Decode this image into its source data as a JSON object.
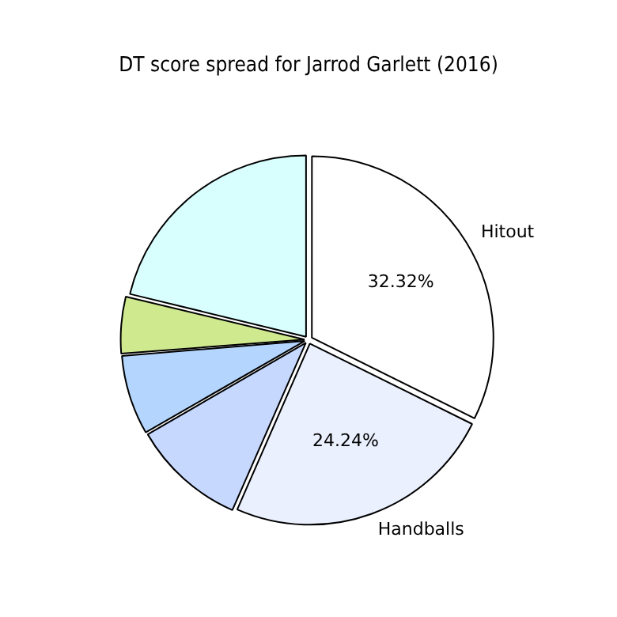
{
  "chart_data": {
    "type": "pie",
    "title": "DT score spread for Jarrod Garlett (2016)",
    "categories": [
      "Hitout",
      "Handballs",
      null,
      null,
      null,
      null
    ],
    "values": [
      32.32,
      24.24,
      10.1,
      7.07,
      5.05,
      21.21
    ],
    "colors": [
      "#ffffff",
      "#eaf0fe",
      "#c6d8fe",
      "#b4d6fe",
      "#cfe98f",
      "#d8fefe"
    ],
    "value_labels": [
      "32.32%",
      "24.24%",
      null,
      null,
      null,
      null
    ],
    "legend": false
  }
}
